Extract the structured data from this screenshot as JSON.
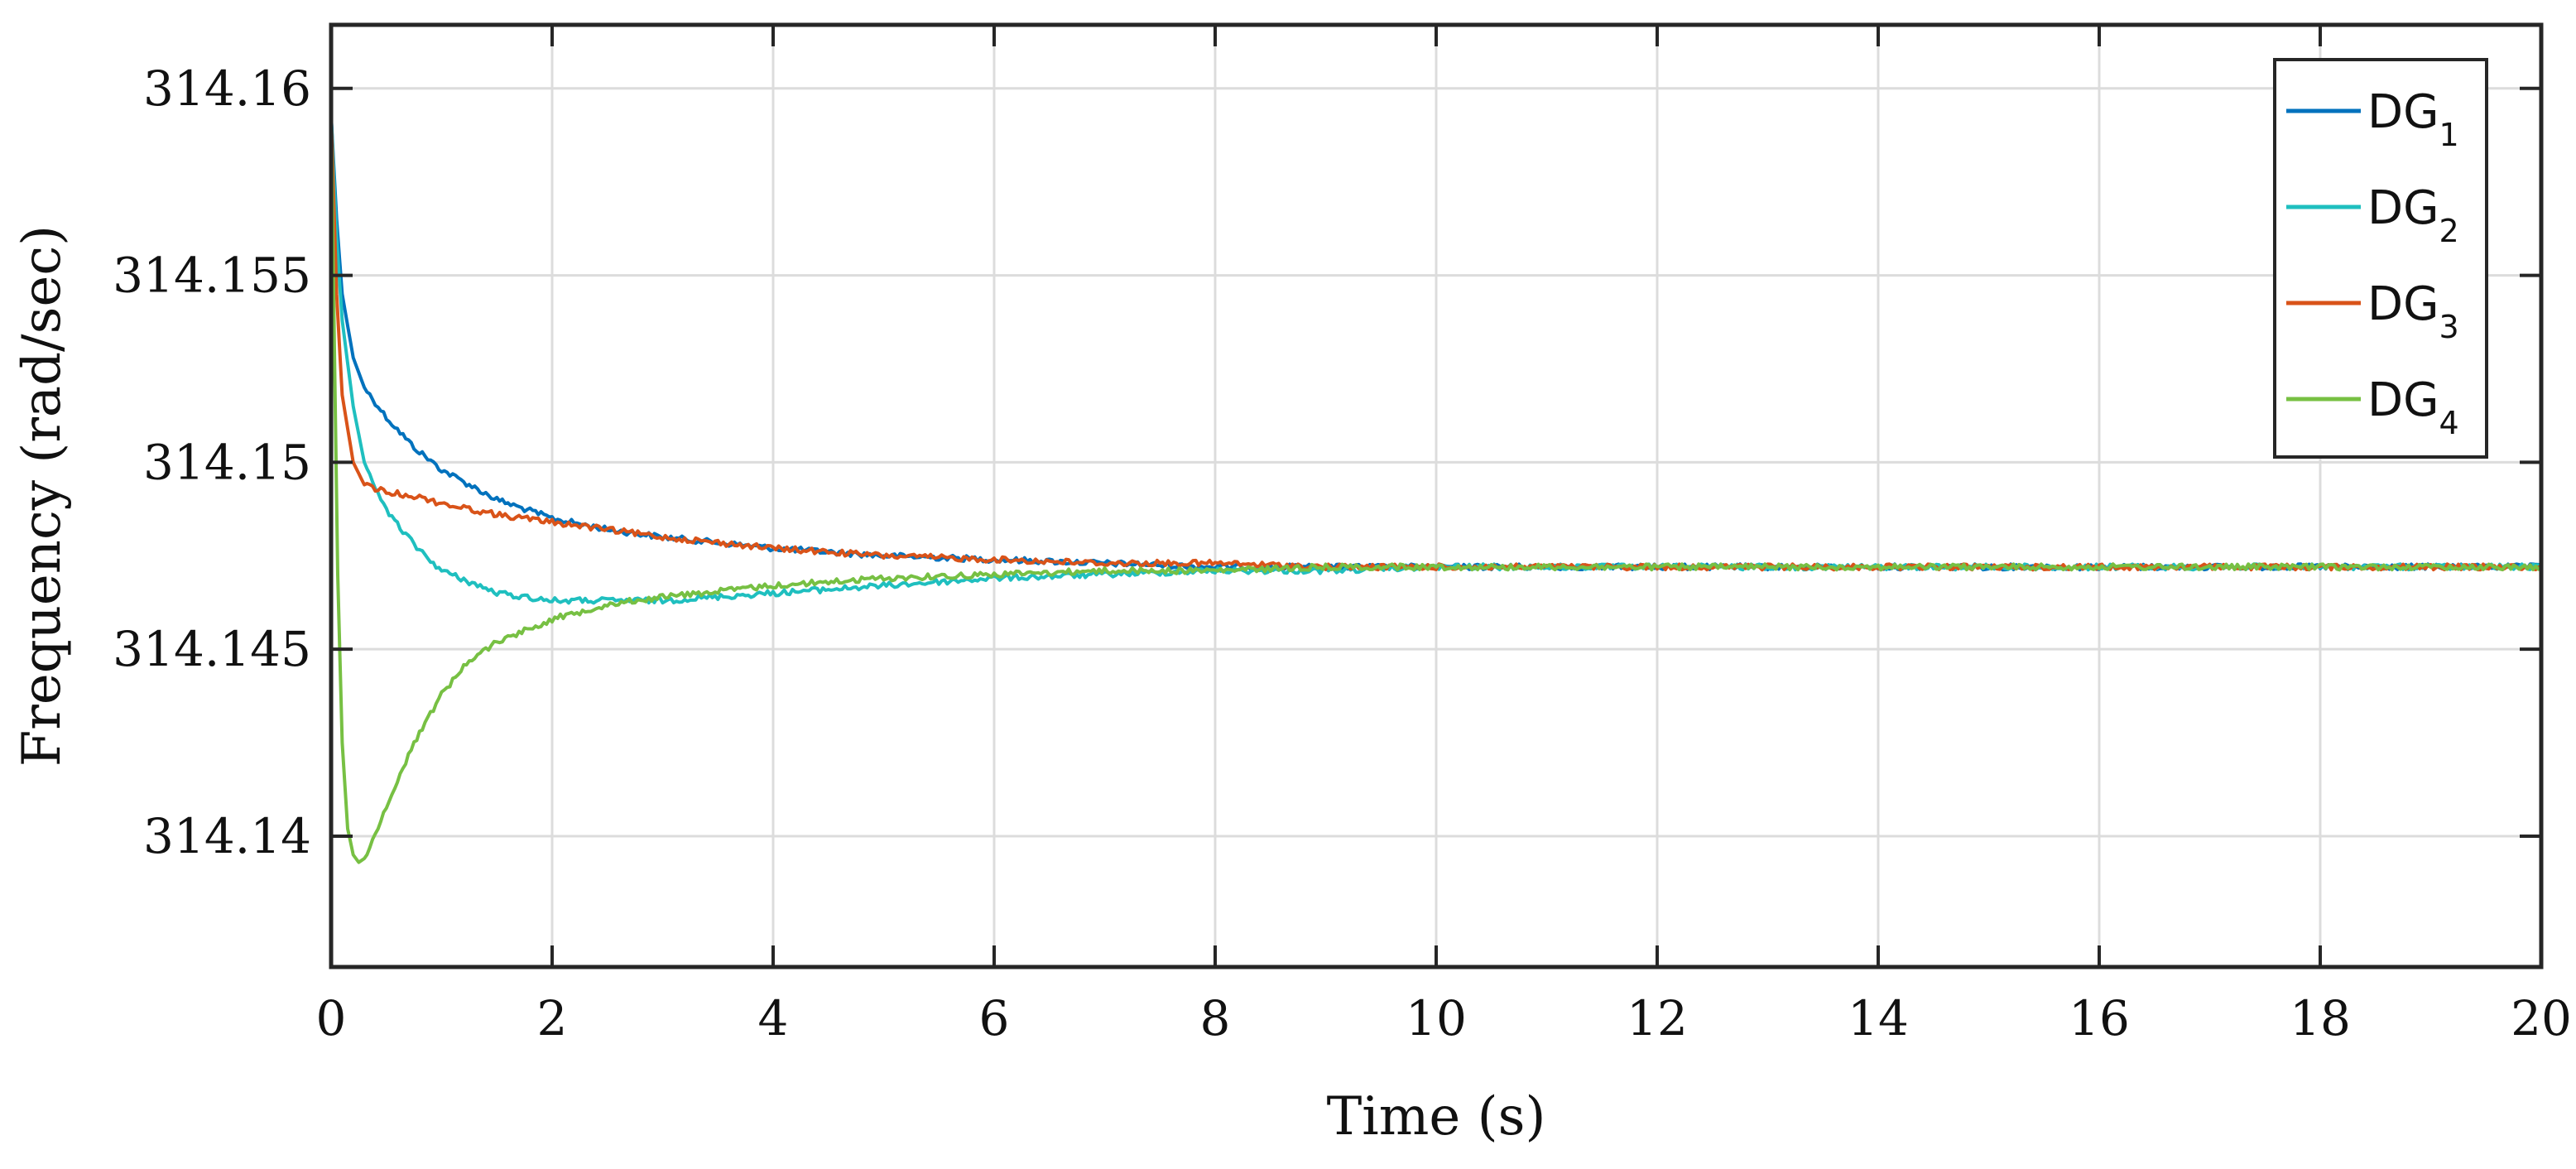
{
  "chart_data": {
    "type": "line",
    "title": "",
    "xlabel": "Time (s)",
    "ylabel": "Frequency (rad/sec)",
    "xlim": [
      0,
      20
    ],
    "ylim": [
      314.1365,
      314.1617
    ],
    "xticks": [
      0,
      2,
      4,
      6,
      8,
      10,
      12,
      14,
      16,
      18,
      20
    ],
    "xtick_labels": [
      "0",
      "2",
      "4",
      "6",
      "8",
      "10",
      "12",
      "14",
      "16",
      "18",
      "20"
    ],
    "yticks": [
      314.14,
      314.145,
      314.15,
      314.155,
      314.16
    ],
    "ytick_labels": [
      "314.14",
      "314.145",
      "314.15",
      "314.155",
      "314.16"
    ],
    "grid": true,
    "legend_position": "top-right",
    "series": [
      {
        "name": "DG",
        "subscript": "1",
        "color": "#0072BD",
        "x": [
          0,
          0.05,
          0.1,
          0.2,
          0.3,
          0.5,
          0.75,
          1,
          1.5,
          2,
          2.5,
          3,
          4,
          5,
          6,
          7,
          8,
          9,
          10,
          12,
          14,
          16,
          18,
          20
        ],
        "y": [
          314.1593,
          314.1565,
          314.1545,
          314.1528,
          314.152,
          314.1512,
          314.1504,
          314.1498,
          314.149,
          314.1485,
          314.1482,
          314.148,
          314.1477,
          314.1475,
          314.1474,
          314.1473,
          314.1472,
          314.1472,
          314.1472,
          314.1472,
          314.1472,
          314.1472,
          314.1472,
          314.1472
        ]
      },
      {
        "name": "DG",
        "subscript": "2",
        "color": "#1FBFBF",
        "x": [
          0,
          0.05,
          0.1,
          0.2,
          0.3,
          0.5,
          0.75,
          1,
          1.5,
          2,
          2.5,
          3,
          4,
          5,
          6,
          7,
          8,
          9,
          10,
          12,
          14,
          16,
          18,
          20
        ],
        "y": [
          314.1593,
          314.156,
          314.1538,
          314.1515,
          314.15,
          314.1487,
          314.1478,
          314.1471,
          314.1465,
          314.1463,
          314.1463,
          314.1463,
          314.1465,
          314.1467,
          314.1469,
          314.147,
          314.1471,
          314.1471,
          314.1472,
          314.1472,
          314.1472,
          314.1472,
          314.1472,
          314.1472
        ]
      },
      {
        "name": "DG",
        "subscript": "3",
        "color": "#D95319",
        "x": [
          0,
          0.05,
          0.1,
          0.2,
          0.3,
          0.5,
          0.75,
          1,
          1.5,
          2,
          2.5,
          3,
          4,
          5,
          6,
          7,
          8,
          9,
          10,
          12,
          14,
          16,
          18,
          20
        ],
        "y": [
          314.1593,
          314.1545,
          314.1518,
          314.15,
          314.1494,
          314.1492,
          314.1491,
          314.1489,
          314.1486,
          314.1484,
          314.1482,
          314.148,
          314.1477,
          314.1475,
          314.1474,
          314.1473,
          314.1473,
          314.1472,
          314.1472,
          314.1472,
          314.1472,
          314.1472,
          314.1472,
          314.1472
        ]
      },
      {
        "name": "DG",
        "subscript": "4",
        "color": "#77C043",
        "x": [
          0,
          0.03,
          0.06,
          0.1,
          0.15,
          0.2,
          0.25,
          0.3,
          0.4,
          0.5,
          0.75,
          1,
          1.25,
          1.5,
          2,
          2.5,
          3,
          4,
          5,
          6,
          7,
          8,
          9,
          10,
          12,
          14,
          16,
          18,
          20
        ],
        "y": [
          314.1593,
          314.153,
          314.147,
          314.1425,
          314.1402,
          314.1395,
          314.1393,
          314.1394,
          314.14,
          314.1408,
          314.1425,
          314.1438,
          314.1447,
          314.1452,
          314.1458,
          314.1462,
          314.1464,
          314.1467,
          314.1469,
          314.147,
          314.1471,
          314.1471,
          314.1472,
          314.1472,
          314.1472,
          314.1472,
          314.1472,
          314.1472,
          314.1472
        ]
      }
    ]
  }
}
